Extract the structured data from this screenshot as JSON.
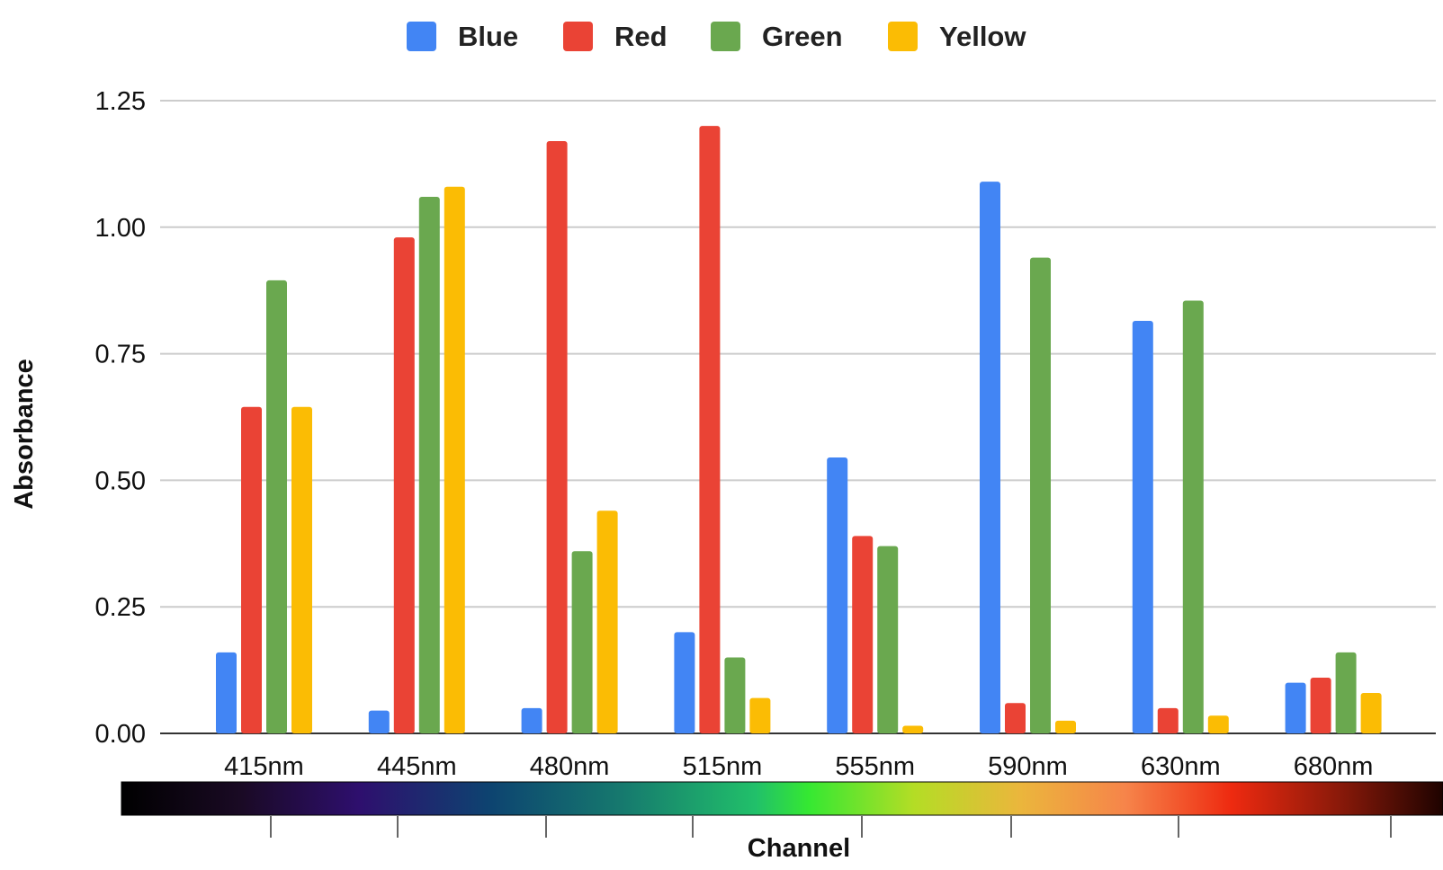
{
  "chart_data": {
    "type": "bar",
    "categories": [
      "415nm",
      "445nm",
      "480nm",
      "515nm",
      "555nm",
      "590nm",
      "630nm",
      "680nm"
    ],
    "series": [
      {
        "name": "Blue",
        "color": "#4285F4",
        "values": [
          0.16,
          0.045,
          0.05,
          0.2,
          0.545,
          1.09,
          0.815,
          0.1
        ]
      },
      {
        "name": "Red",
        "color": "#EA4335",
        "values": [
          0.645,
          0.98,
          1.17,
          1.2,
          0.39,
          0.06,
          0.05,
          0.11
        ]
      },
      {
        "name": "Green",
        "color": "#6AA84F",
        "values": [
          0.895,
          1.06,
          0.36,
          0.15,
          0.37,
          0.94,
          0.855,
          0.16
        ]
      },
      {
        "name": "Yellow",
        "color": "#FBBC04",
        "values": [
          0.645,
          1.08,
          0.44,
          0.07,
          0.015,
          0.025,
          0.035,
          0.08
        ]
      }
    ],
    "ylabel": "Absorbance",
    "xlabel": "Channel",
    "ylim": [
      0,
      1.25
    ],
    "yticks": [
      "0.00",
      "0.25",
      "0.50",
      "0.75",
      "1.00",
      "1.25"
    ],
    "grid": true,
    "legend_position": "top-center",
    "spectrum_bar": true
  }
}
